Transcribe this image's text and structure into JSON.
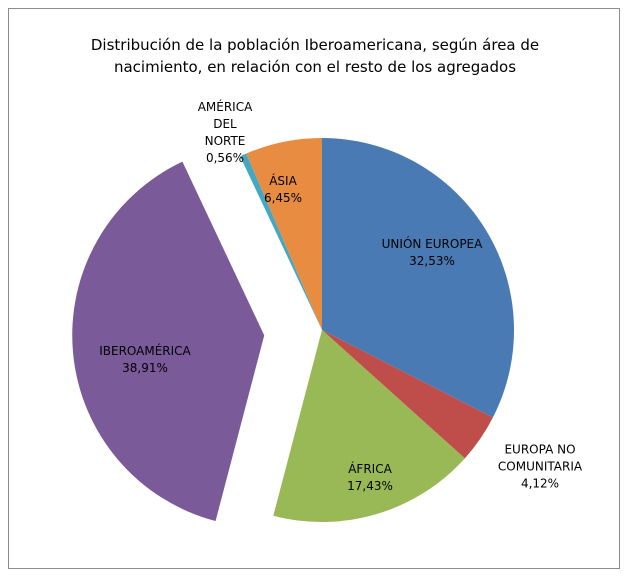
{
  "chart_data": {
    "type": "pie",
    "title": "Distribución de la población Iberoamericana, según  área de nacimiento, en relación con el resto de los agregados",
    "categories": [
      "UNIÓN EUROPEA",
      "EUROPA NO COMUNITARIA",
      "ÁFRICA",
      "IBEROAMÉRICA",
      "AMÉRICA DEL NORTE",
      "ÁSIA"
    ],
    "values": [
      32.53,
      4.12,
      17.43,
      38.91,
      0.56,
      6.45
    ],
    "value_labels": [
      "32,53%",
      "4,12%",
      "17,43%",
      "38,91%",
      "0,56%",
      "6,45%"
    ],
    "colors": [
      "#4a7ab4",
      "#bf4e4b",
      "#98b956",
      "#7a5a98",
      "#45a8c2",
      "#e88c42"
    ],
    "exploded": "IBEROAMÉRICA"
  }
}
